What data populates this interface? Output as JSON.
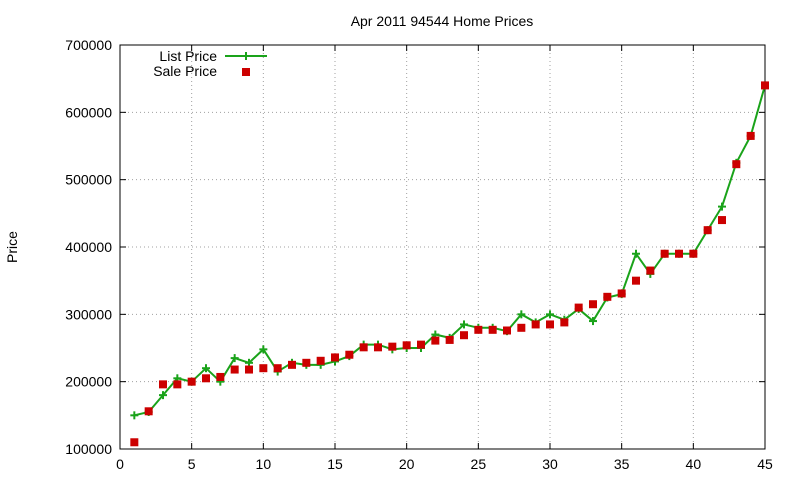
{
  "chart_data": {
    "type": "line",
    "title": "Apr 2011 94544 Home Prices",
    "xlabel": "",
    "ylabel": "Price",
    "xlim": [
      0,
      45
    ],
    "ylim": [
      100000,
      700000
    ],
    "x_ticks": [
      0,
      5,
      10,
      15,
      20,
      25,
      30,
      35,
      40,
      45
    ],
    "y_ticks": [
      100000,
      200000,
      300000,
      400000,
      500000,
      600000,
      700000
    ],
    "grid": true,
    "legend_position": "top-left",
    "series": [
      {
        "name": "List Price",
        "style": "linespoints",
        "color": "#1aa31a",
        "marker": "plus",
        "x": [
          1,
          2,
          3,
          4,
          5,
          6,
          7,
          8,
          9,
          10,
          11,
          12,
          13,
          14,
          15,
          16,
          17,
          18,
          19,
          20,
          21,
          22,
          23,
          24,
          25,
          26,
          27,
          28,
          29,
          30,
          31,
          32,
          33,
          34,
          35,
          36,
          37,
          38,
          39,
          40,
          41,
          42,
          43,
          44,
          45
        ],
        "values": [
          150000,
          155000,
          180000,
          205000,
          200000,
          220000,
          200000,
          235000,
          228000,
          248000,
          215000,
          228000,
          225000,
          225000,
          230000,
          238000,
          255000,
          255000,
          248000,
          250000,
          250000,
          270000,
          265000,
          285000,
          280000,
          280000,
          275000,
          300000,
          288000,
          300000,
          292000,
          308000,
          290000,
          325000,
          330000,
          390000,
          360000,
          390000,
          390000,
          390000,
          425000,
          460000,
          525000,
          565000,
          640000
        ]
      },
      {
        "name": "Sale Price",
        "style": "points",
        "color": "#cc0000",
        "marker": "square",
        "x": [
          1,
          2,
          3,
          4,
          5,
          6,
          7,
          8,
          9,
          10,
          11,
          12,
          13,
          14,
          15,
          16,
          17,
          18,
          19,
          20,
          21,
          22,
          23,
          24,
          25,
          26,
          27,
          28,
          29,
          30,
          31,
          32,
          33,
          34,
          35,
          36,
          37,
          38,
          39,
          40,
          41,
          42,
          43,
          44,
          45
        ],
        "values": [
          110000,
          156000,
          196000,
          196000,
          200000,
          205000,
          207000,
          218000,
          218000,
          220000,
          220000,
          225000,
          228000,
          231000,
          236000,
          240000,
          251000,
          251000,
          252000,
          254000,
          255000,
          261000,
          262000,
          269000,
          277000,
          277000,
          276000,
          280000,
          285000,
          285000,
          288000,
          310000,
          315000,
          326000,
          331000,
          350000,
          365000,
          390000,
          390000,
          390000,
          425000,
          440000,
          523000,
          565000,
          640000
        ]
      }
    ]
  }
}
